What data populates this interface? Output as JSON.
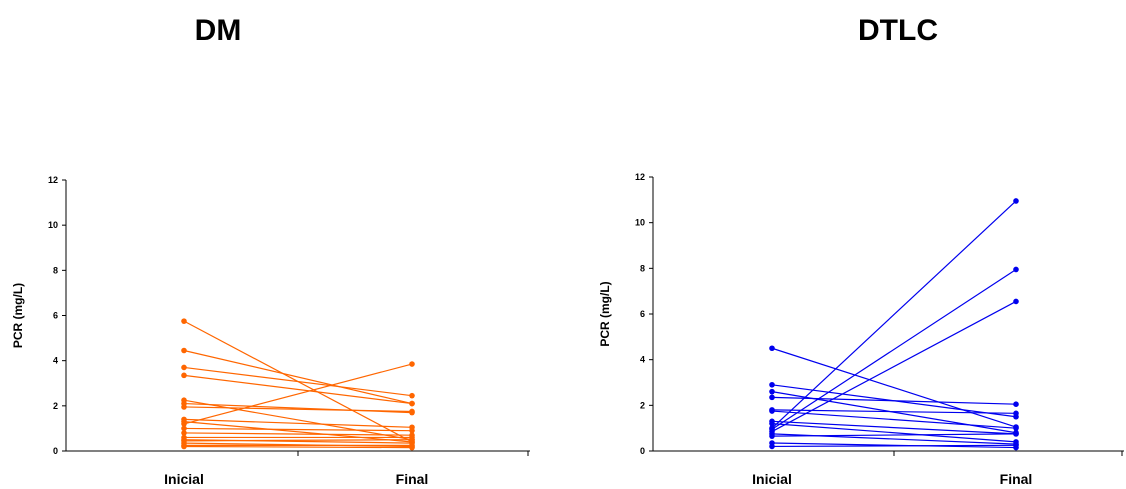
{
  "chart_data": [
    {
      "type": "line",
      "title": "DM",
      "color": "#ff6600",
      "categories": [
        "Inicial",
        "Final"
      ],
      "ylabel": "PCR (mg/L)",
      "ylim": [
        0,
        12
      ],
      "yticks": [
        "0",
        "2",
        "4",
        "6",
        "8",
        "10",
        "12"
      ],
      "series": [
        {
          "values": [
            5.75,
            0.4
          ]
        },
        {
          "values": [
            4.45,
            2.1
          ]
        },
        {
          "values": [
            3.7,
            2.45
          ]
        },
        {
          "values": [
            3.35,
            2.1
          ]
        },
        {
          "values": [
            2.25,
            0.5
          ]
        },
        {
          "values": [
            2.1,
            1.7
          ]
        },
        {
          "values": [
            1.95,
            1.75
          ]
        },
        {
          "values": [
            1.4,
            1.05
          ]
        },
        {
          "values": [
            1.3,
            0.4
          ]
        },
        {
          "values": [
            1.2,
            3.85
          ]
        },
        {
          "values": [
            1.0,
            0.9
          ]
        },
        {
          "values": [
            0.8,
            0.7
          ]
        },
        {
          "values": [
            0.6,
            0.6
          ]
        },
        {
          "values": [
            0.5,
            0.35
          ]
        },
        {
          "values": [
            0.45,
            0.5
          ]
        },
        {
          "values": [
            0.35,
            0.2
          ]
        },
        {
          "values": [
            0.25,
            0.25
          ]
        },
        {
          "values": [
            0.2,
            0.15
          ]
        }
      ]
    },
    {
      "type": "line",
      "title": "DTLC",
      "color": "#0000ee",
      "categories": [
        "Inicial",
        "Final"
      ],
      "ylabel": "PCR (mg/L)",
      "ylim": [
        0,
        12
      ],
      "yticks": [
        "0",
        "2",
        "4",
        "6",
        "8",
        "10",
        "12"
      ],
      "series": [
        {
          "values": [
            4.5,
            1.05
          ]
        },
        {
          "values": [
            2.9,
            1.5
          ]
        },
        {
          "values": [
            2.6,
            0.8
          ]
        },
        {
          "values": [
            2.35,
            2.05
          ]
        },
        {
          "values": [
            1.8,
            1.65
          ]
        },
        {
          "values": [
            1.75,
            1.0
          ]
        },
        {
          "values": [
            1.3,
            0.75
          ]
        },
        {
          "values": [
            1.2,
            0.4
          ]
        },
        {
          "values": [
            1.0,
            10.95
          ]
        },
        {
          "values": [
            0.95,
            7.95
          ]
        },
        {
          "values": [
            0.85,
            6.55
          ]
        },
        {
          "values": [
            0.75,
            0.3
          ]
        },
        {
          "values": [
            0.65,
            0.75
          ]
        },
        {
          "values": [
            0.35,
            0.15
          ]
        },
        {
          "values": [
            0.2,
            0.25
          ]
        }
      ]
    }
  ]
}
